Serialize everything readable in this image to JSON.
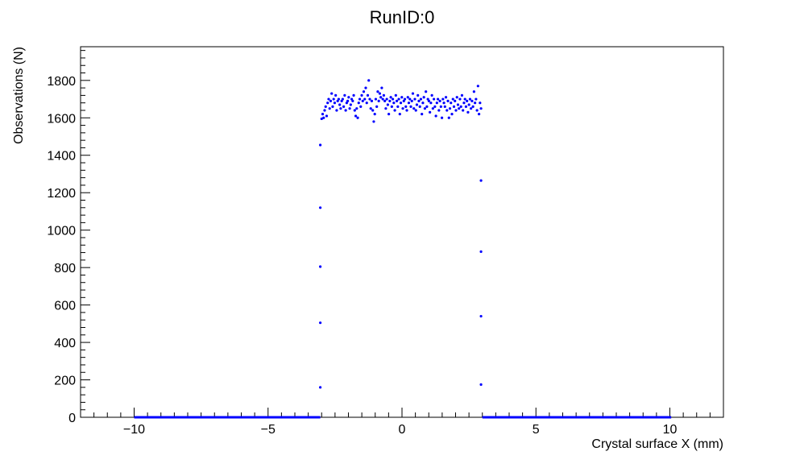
{
  "chart_data": {
    "type": "scatter",
    "title": "RunID:0",
    "xlabel": "Crystal surface X (mm)",
    "ylabel": "Observations (N)",
    "xlim": [
      -12.0,
      12.0
    ],
    "ylim": [
      0,
      1980
    ],
    "x_ticks": [
      -10,
      -5,
      0,
      5,
      10
    ],
    "x_tick_labels": [
      "−10",
      "−5",
      "0",
      "5",
      "10"
    ],
    "y_ticks": [
      0,
      200,
      400,
      600,
      800,
      1000,
      1200,
      1400,
      1600,
      1800
    ],
    "y_tick_labels": [
      "0",
      "200",
      "400",
      "600",
      "800",
      "1000",
      "1200",
      "1400",
      "1600",
      "1800"
    ],
    "grid": false,
    "legend": "none",
    "marker_color": "#0000ff",
    "baseline_segments": [
      {
        "x_start": -10.0,
        "x_end": -3.05,
        "y": 0
      },
      {
        "x_start": 3.0,
        "x_end": 10.05,
        "y": 0
      }
    ],
    "edge_points": [
      {
        "x": -3.05,
        "y": 160
      },
      {
        "x": -3.05,
        "y": 505
      },
      {
        "x": -3.05,
        "y": 805
      },
      {
        "x": -3.05,
        "y": 1120
      },
      {
        "x": -3.05,
        "y": 1455
      },
      {
        "x": 2.95,
        "y": 175
      },
      {
        "x": 2.95,
        "y": 540
      },
      {
        "x": 2.95,
        "y": 885
      },
      {
        "x": 2.95,
        "y": 1265
      }
    ],
    "plateau_x_range": [
      -3.0,
      2.95
    ],
    "plateau_y": [
      1595,
      1620,
      1600,
      1640,
      1660,
      1610,
      1680,
      1700,
      1650,
      1690,
      1730,
      1660,
      1700,
      1680,
      1720,
      1640,
      1690,
      1700,
      1670,
      1650,
      1690,
      1700,
      1660,
      1720,
      1640,
      1680,
      1690,
      1710,
      1650,
      1670,
      1700,
      1690,
      1720,
      1640,
      1610,
      1650,
      1600,
      1680,
      1700,
      1660,
      1720,
      1690,
      1740,
      1700,
      1760,
      1680,
      1720,
      1800,
      1700,
      1650,
      1690,
      1640,
      1580,
      1620,
      1700,
      1660,
      1740,
      1690,
      1730,
      1710,
      1760,
      1700,
      1720,
      1690,
      1650,
      1700,
      1670,
      1620,
      1690,
      1710,
      1660,
      1700,
      1680,
      1640,
      1720,
      1690,
      1660,
      1700,
      1620,
      1680,
      1710,
      1650,
      1690,
      1700,
      1660,
      1640,
      1710,
      1680,
      1700,
      1660,
      1690,
      1730,
      1650,
      1700,
      1640,
      1670,
      1720,
      1690,
      1660,
      1700,
      1620,
      1680,
      1710,
      1650,
      1740,
      1660,
      1700,
      1690,
      1630,
      1680,
      1720,
      1650,
      1700,
      1660,
      1610,
      1680,
      1700,
      1640,
      1690,
      1660,
      1600,
      1700,
      1680,
      1660,
      1710,
      1640,
      1690,
      1600,
      1650,
      1680,
      1620,
      1700,
      1660,
      1690,
      1640,
      1710,
      1670,
      1650,
      1700,
      1660,
      1720,
      1640,
      1680,
      1700,
      1660,
      1690,
      1630,
      1670,
      1700,
      1650,
      1690,
      1660,
      1740,
      1680,
      1700,
      1640,
      1770,
      1620,
      1680,
      1650
    ]
  }
}
